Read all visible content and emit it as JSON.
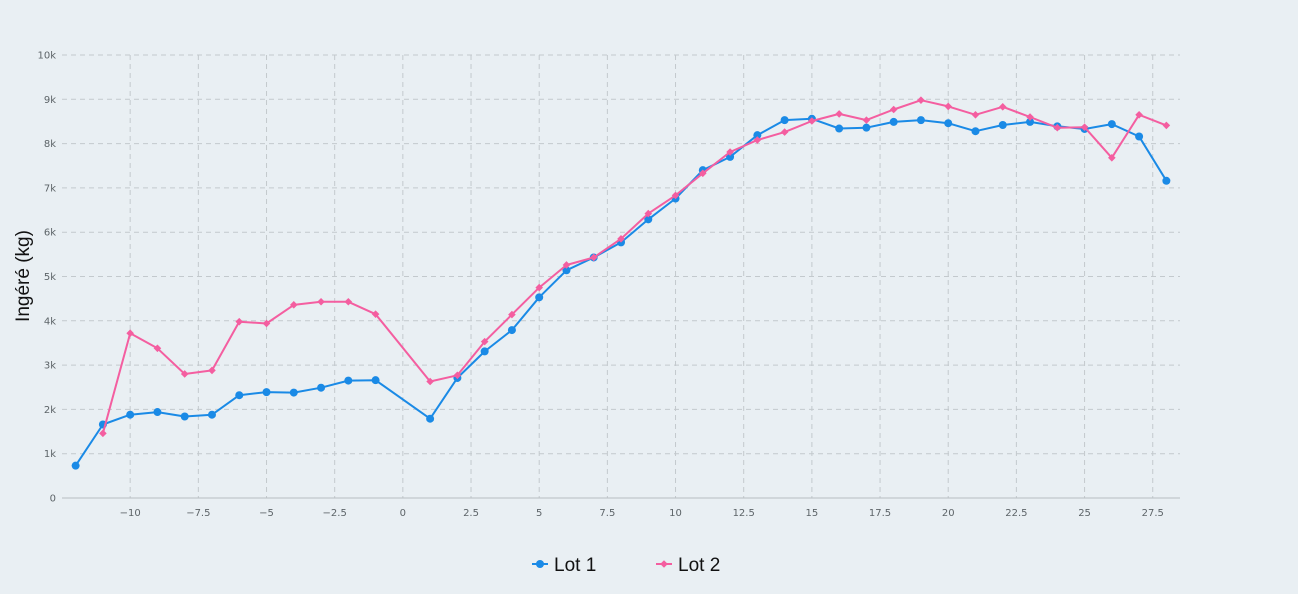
{
  "chart_data": {
    "type": "line",
    "title": "",
    "xlabel": "",
    "ylabel": "Ingéré (kg)",
    "xlim": [
      -12.5,
      28.5
    ],
    "ylim": [
      0,
      10000
    ],
    "grid": true,
    "legend_position": "bottom",
    "x_ticks": [
      -10,
      -7.5,
      -5,
      -2.5,
      0,
      2.5,
      5,
      7.5,
      10,
      12.5,
      15,
      17.5,
      20,
      22.5,
      25,
      27.5
    ],
    "x_tick_labels": [
      "−10",
      "−7.5",
      "−5",
      "−2.5",
      "0",
      "2.5",
      "5",
      "7.5",
      "10",
      "12.5",
      "15",
      "17.5",
      "20",
      "22.5",
      "25",
      "27.5"
    ],
    "y_ticks": [
      0,
      1000,
      2000,
      3000,
      4000,
      5000,
      6000,
      7000,
      8000,
      9000,
      10000
    ],
    "y_tick_labels": [
      "0",
      "1k",
      "2k",
      "3k",
      "4k",
      "5k",
      "6k",
      "7k",
      "8k",
      "9k",
      "10k"
    ],
    "series": [
      {
        "name": "Lot 1",
        "color": "#1a8ae6",
        "marker": "circle",
        "points": [
          [
            -12,
            730
          ],
          [
            -11,
            1660
          ],
          [
            -10,
            1880
          ],
          [
            -9,
            1940
          ],
          [
            -8,
            1840
          ],
          [
            -7,
            1880
          ],
          [
            -6,
            2320
          ],
          [
            -5,
            2390
          ],
          [
            -4,
            2380
          ],
          [
            -3,
            2490
          ],
          [
            -2,
            2650
          ],
          [
            -1,
            2660
          ],
          [
            1,
            1790
          ],
          [
            2,
            2710
          ],
          [
            3,
            3310
          ],
          [
            4,
            3790
          ],
          [
            5,
            4530
          ],
          [
            6,
            5140
          ],
          [
            7,
            5430
          ],
          [
            8,
            5770
          ],
          [
            9,
            6290
          ],
          [
            10,
            6760
          ],
          [
            11,
            7400
          ],
          [
            12,
            7700
          ],
          [
            13,
            8190
          ],
          [
            14,
            8530
          ],
          [
            15,
            8560
          ],
          [
            16,
            8340
          ],
          [
            17,
            8360
          ],
          [
            18,
            8490
          ],
          [
            19,
            8530
          ],
          [
            20,
            8460
          ],
          [
            21,
            8280
          ],
          [
            22,
            8420
          ],
          [
            23,
            8490
          ],
          [
            24,
            8390
          ],
          [
            25,
            8330
          ],
          [
            26,
            8440
          ],
          [
            27,
            8160
          ],
          [
            28,
            7160
          ]
        ]
      },
      {
        "name": "Lot 2",
        "color": "#f45ea0",
        "marker": "diamond",
        "points": [
          [
            -11,
            1460
          ],
          [
            -10,
            3720
          ],
          [
            -9,
            3380
          ],
          [
            -8,
            2800
          ],
          [
            -7,
            2880
          ],
          [
            -6,
            3980
          ],
          [
            -5,
            3940
          ],
          [
            -4,
            4360
          ],
          [
            -3,
            4430
          ],
          [
            -2,
            4430
          ],
          [
            -1,
            4150
          ],
          [
            1,
            2630
          ],
          [
            2,
            2770
          ],
          [
            3,
            3530
          ],
          [
            4,
            4140
          ],
          [
            5,
            4750
          ],
          [
            6,
            5260
          ],
          [
            7,
            5430
          ],
          [
            8,
            5850
          ],
          [
            9,
            6420
          ],
          [
            10,
            6830
          ],
          [
            11,
            7330
          ],
          [
            12,
            7810
          ],
          [
            13,
            8080
          ],
          [
            14,
            8260
          ],
          [
            15,
            8510
          ],
          [
            16,
            8670
          ],
          [
            17,
            8530
          ],
          [
            18,
            8770
          ],
          [
            19,
            8980
          ],
          [
            20,
            8840
          ],
          [
            21,
            8650
          ],
          [
            22,
            8830
          ],
          [
            23,
            8600
          ],
          [
            24,
            8360
          ],
          [
            25,
            8370
          ],
          [
            26,
            7680
          ],
          [
            27,
            8650
          ],
          [
            28,
            8410
          ]
        ]
      }
    ]
  }
}
